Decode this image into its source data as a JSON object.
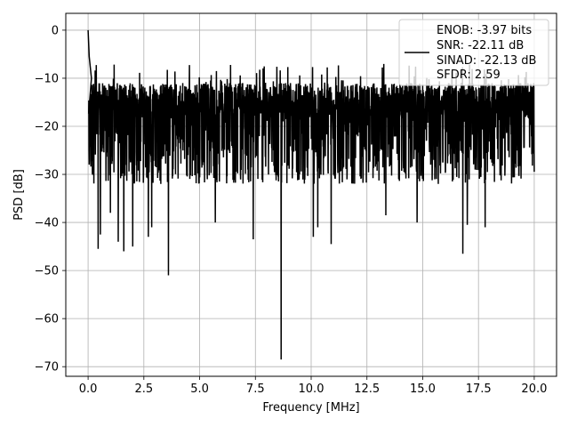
{
  "chart_data": {
    "type": "line",
    "title": "",
    "xlabel": "Frequency [MHz]",
    "ylabel": "PSD [dB]",
    "xlim": [
      -1.0,
      21.0
    ],
    "ylim": [
      -72.0,
      3.5
    ],
    "xticks": [
      0.0,
      2.5,
      5.0,
      7.5,
      10.0,
      12.5,
      15.0,
      17.5,
      20.0
    ],
    "xtick_labels": [
      "0.0",
      "2.5",
      "5.0",
      "7.5",
      "10.0",
      "12.5",
      "15.0",
      "17.5",
      "20.0"
    ],
    "yticks": [
      0,
      -10,
      -20,
      -30,
      -40,
      -50,
      -60,
      -70
    ],
    "ytick_labels": [
      "0",
      "−10",
      "−20",
      "−30",
      "−40",
      "−50",
      "−60",
      "−70"
    ],
    "grid": true,
    "legend_position": "top-right",
    "legend_lines": [
      "ENOB: -3.97 bits",
      "SNR: -22.11 dB",
      "SINAD: -22.13 dB",
      "SFDR: 2.59"
    ],
    "line_color": "#000000",
    "series": [
      {
        "x_range": [
          0.0,
          20.0
        ],
        "noise_floor_range": [
          -32,
          -11
        ],
        "typical_level": -20,
        "peaks": [
          {
            "x": 0.0,
            "y": 0.0
          },
          {
            "x": 0.05,
            "y": -5.5
          },
          {
            "x": 0.15,
            "y": -10.0
          }
        ],
        "dips": [
          {
            "x": 0.45,
            "y": -45.5
          },
          {
            "x": 0.55,
            "y": -42.5
          },
          {
            "x": 1.0,
            "y": -38.0
          },
          {
            "x": 1.35,
            "y": -44.0
          },
          {
            "x": 1.6,
            "y": -46.0
          },
          {
            "x": 2.0,
            "y": -45.0
          },
          {
            "x": 2.7,
            "y": -43.0
          },
          {
            "x": 2.85,
            "y": -41.0
          },
          {
            "x": 3.6,
            "y": -51.0
          },
          {
            "x": 5.7,
            "y": -40.0
          },
          {
            "x": 7.4,
            "y": -43.5
          },
          {
            "x": 8.65,
            "y": -68.5
          },
          {
            "x": 10.1,
            "y": -43.0
          },
          {
            "x": 10.3,
            "y": -41.0
          },
          {
            "x": 10.9,
            "y": -44.5
          },
          {
            "x": 13.35,
            "y": -38.5
          },
          {
            "x": 14.75,
            "y": -40.0
          },
          {
            "x": 16.8,
            "y": -46.5
          },
          {
            "x": 17.0,
            "y": -40.5
          },
          {
            "x": 17.8,
            "y": -41.0
          }
        ]
      }
    ]
  }
}
